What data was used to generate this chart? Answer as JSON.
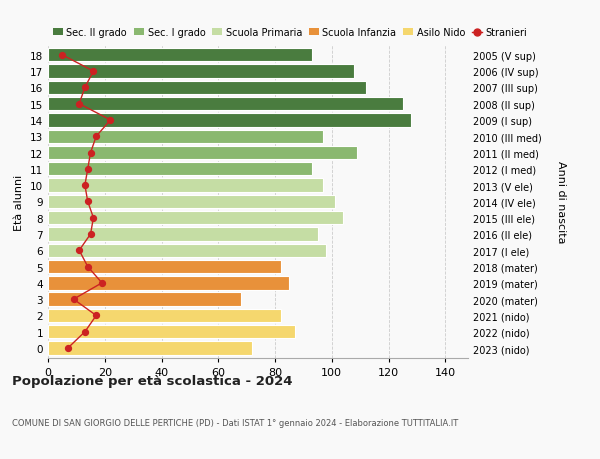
{
  "ages": [
    0,
    1,
    2,
    3,
    4,
    5,
    6,
    7,
    8,
    9,
    10,
    11,
    12,
    13,
    14,
    15,
    16,
    17,
    18
  ],
  "bar_values": [
    72,
    87,
    82,
    68,
    85,
    82,
    98,
    95,
    104,
    101,
    97,
    93,
    109,
    97,
    128,
    125,
    112,
    108,
    93
  ],
  "stranieri": [
    7,
    13,
    17,
    9,
    19,
    14,
    11,
    15,
    16,
    14,
    13,
    14,
    15,
    17,
    22,
    11,
    13,
    16,
    5
  ],
  "right_labels": [
    "2023 (nido)",
    "2022 (nido)",
    "2021 (nido)",
    "2020 (mater)",
    "2019 (mater)",
    "2018 (mater)",
    "2017 (I ele)",
    "2016 (II ele)",
    "2015 (III ele)",
    "2014 (IV ele)",
    "2013 (V ele)",
    "2012 (I med)",
    "2011 (II med)",
    "2010 (III med)",
    "2009 (I sup)",
    "2008 (II sup)",
    "2007 (III sup)",
    "2006 (IV sup)",
    "2005 (V sup)"
  ],
  "bar_colors": [
    "#f5d76e",
    "#f5d76e",
    "#f5d76e",
    "#e8913a",
    "#e8913a",
    "#e8913a",
    "#c5dda4",
    "#c5dda4",
    "#c5dda4",
    "#c5dda4",
    "#c5dda4",
    "#8ab870",
    "#8ab870",
    "#8ab870",
    "#4a7c3f",
    "#4a7c3f",
    "#4a7c3f",
    "#4a7c3f",
    "#4a7c3f"
  ],
  "legend_labels": [
    "Sec. II grado",
    "Sec. I grado",
    "Scuola Primaria",
    "Scuola Infanzia",
    "Asilo Nido",
    "Stranieri"
  ],
  "legend_colors": [
    "#4a7c3f",
    "#8ab870",
    "#c5dda4",
    "#e8913a",
    "#f5d76e",
    "#cc2222"
  ],
  "title": "Popolazione per età scolastica - 2024",
  "subtitle": "COMUNE DI SAN GIORGIO DELLE PERTICHE (PD) - Dati ISTAT 1° gennaio 2024 - Elaborazione TUTTITALIA.IT",
  "ylabel_left": "Età alunni",
  "ylabel_right": "Anni di nascita",
  "xlim": [
    0,
    148
  ],
  "xticks": [
    0,
    20,
    40,
    60,
    80,
    100,
    120,
    140
  ],
  "stranieri_color": "#cc2222",
  "bg_color": "#f9f9f9",
  "bar_edge_color": "white",
  "grid_color": "#cccccc"
}
